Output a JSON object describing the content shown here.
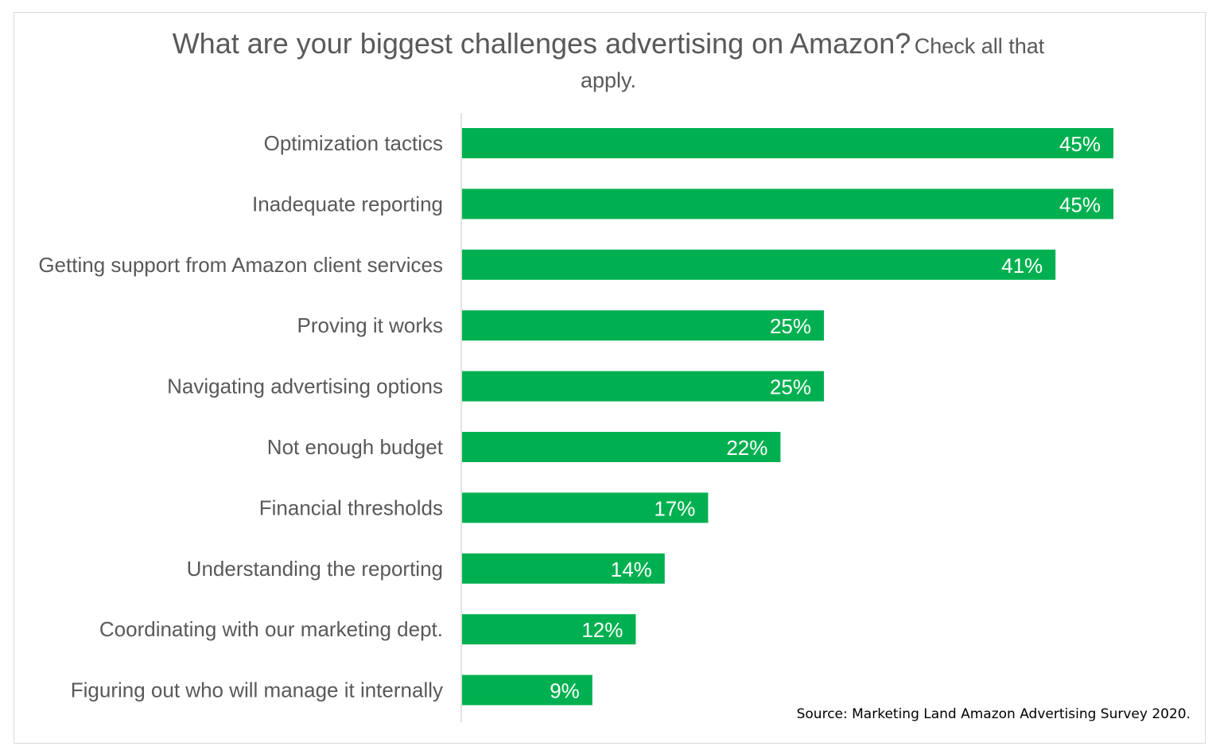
{
  "chart_data": {
    "type": "bar",
    "orientation": "horizontal",
    "title": "What are your biggest challenges advertising on Amazon?",
    "subtitle": "Check all that apply.",
    "categories": [
      "Optimization tactics",
      "Inadequate reporting",
      "Getting support from Amazon client services",
      "Proving it works",
      "Navigating advertising options",
      "Not enough budget",
      "Financial thresholds",
      "Understanding the reporting",
      "Coordinating with our marketing dept.",
      "Figuring out who will manage it internally"
    ],
    "values": [
      45,
      45,
      41,
      25,
      25,
      22,
      17,
      14,
      12,
      9
    ],
    "data_labels": [
      "45%",
      "45%",
      "41%",
      "25%",
      "25%",
      "22%",
      "17%",
      "14%",
      "12%",
      "9%"
    ],
    "xlabel": "",
    "ylabel": "",
    "xlim": [
      0,
      50
    ],
    "grid": false,
    "bar_color": "#00b050",
    "source": "Source: Marketing Land Amazon Advertising Survey 2020."
  }
}
